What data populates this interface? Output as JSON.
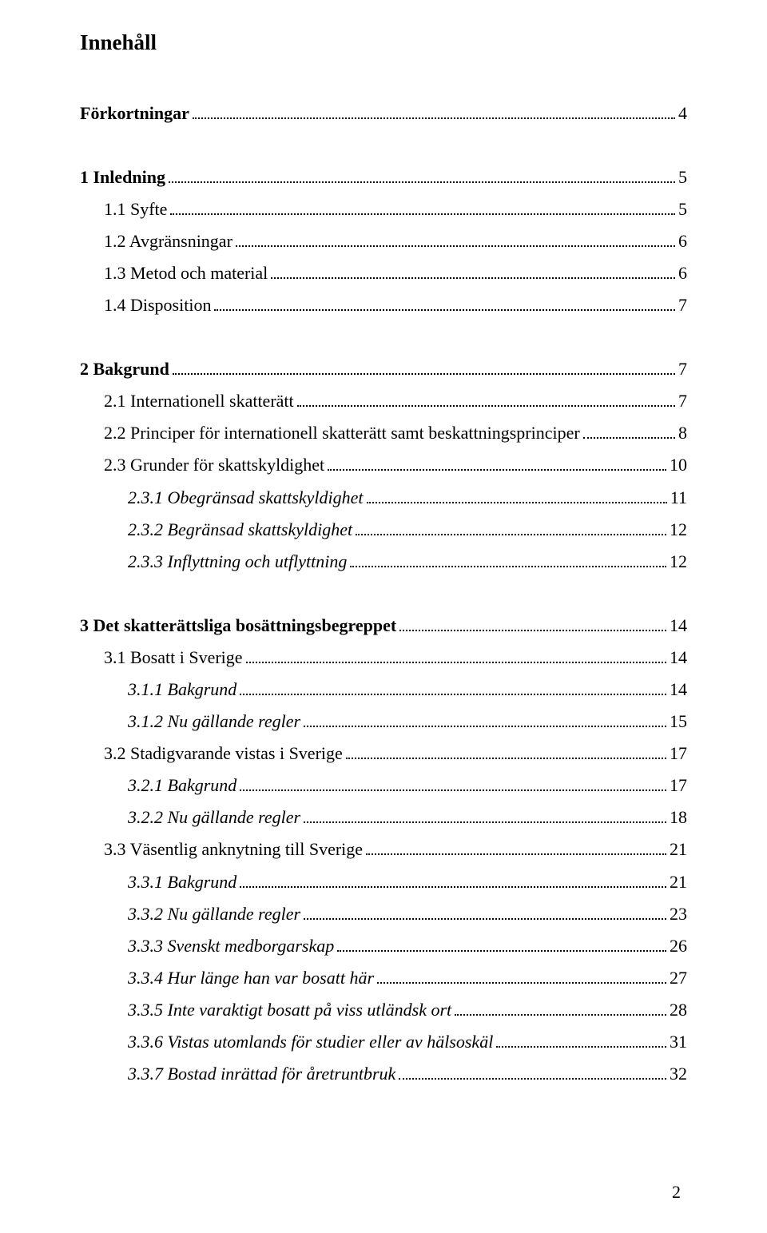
{
  "title": "Innehåll",
  "footer_page": "2",
  "text_color": "#000000",
  "background_color": "#ffffff",
  "font_family": "Times New Roman",
  "title_fontsize": 27,
  "body_fontsize": 22,
  "entries": [
    {
      "label": "Förkortningar",
      "page": "4",
      "indent": 0,
      "bold": true,
      "italic": false,
      "gap_before": false
    },
    {
      "label": "1 Inledning",
      "page": "5",
      "indent": 0,
      "bold": true,
      "italic": false,
      "gap_before": true
    },
    {
      "label": "1.1 Syfte",
      "page": "5",
      "indent": 1,
      "bold": false,
      "italic": false,
      "gap_before": false
    },
    {
      "label": "1.2 Avgränsningar",
      "page": "6",
      "indent": 1,
      "bold": false,
      "italic": false,
      "gap_before": false
    },
    {
      "label": "1.3 Metod och material",
      "page": "6",
      "indent": 1,
      "bold": false,
      "italic": false,
      "gap_before": false
    },
    {
      "label": "1.4 Disposition",
      "page": "7",
      "indent": 1,
      "bold": false,
      "italic": false,
      "gap_before": false
    },
    {
      "label": "2 Bakgrund",
      "page": "7",
      "indent": 0,
      "bold": true,
      "italic": false,
      "gap_before": true
    },
    {
      "label": "2.1 Internationell skatterätt",
      "page": "7",
      "indent": 1,
      "bold": false,
      "italic": false,
      "gap_before": false
    },
    {
      "label": "2.2 Principer för internationell skatterätt samt beskattningsprinciper",
      "page": "8",
      "indent": 1,
      "bold": false,
      "italic": false,
      "gap_before": false
    },
    {
      "label": "2.3 Grunder för skattskyldighet",
      "page": "10",
      "indent": 1,
      "bold": false,
      "italic": false,
      "gap_before": false
    },
    {
      "label": "2.3.1 Obegränsad skattskyldighet",
      "page": "11",
      "indent": 2,
      "bold": false,
      "italic": true,
      "gap_before": false
    },
    {
      "label": "2.3.2 Begränsad skattskyldighet",
      "page": "12",
      "indent": 2,
      "bold": false,
      "italic": true,
      "gap_before": false
    },
    {
      "label": "2.3.3 Inflyttning och utflyttning",
      "page": "12",
      "indent": 2,
      "bold": false,
      "italic": true,
      "gap_before": false
    },
    {
      "label": "3 Det skatterättsliga bosättningsbegreppet",
      "page": "14",
      "indent": 0,
      "bold": true,
      "italic": false,
      "gap_before": true
    },
    {
      "label": "3.1 Bosatt i Sverige",
      "page": "14",
      "indent": 1,
      "bold": false,
      "italic": false,
      "gap_before": false
    },
    {
      "label": "3.1.1 Bakgrund",
      "page": "14",
      "indent": 2,
      "bold": false,
      "italic": true,
      "gap_before": false
    },
    {
      "label": "3.1.2 Nu gällande regler",
      "page": "15",
      "indent": 2,
      "bold": false,
      "italic": true,
      "gap_before": false
    },
    {
      "label": "3.2 Stadigvarande vistas i Sverige",
      "page": "17",
      "indent": 1,
      "bold": false,
      "italic": false,
      "gap_before": false
    },
    {
      "label": "3.2.1 Bakgrund",
      "page": "17",
      "indent": 2,
      "bold": false,
      "italic": true,
      "gap_before": false
    },
    {
      "label": "3.2.2 Nu gällande regler",
      "page": "18",
      "indent": 2,
      "bold": false,
      "italic": true,
      "gap_before": false
    },
    {
      "label": "3.3 Väsentlig anknytning till Sverige",
      "page": "21",
      "indent": 1,
      "bold": false,
      "italic": false,
      "gap_before": false
    },
    {
      "label": "3.3.1 Bakgrund",
      "page": "21",
      "indent": 2,
      "bold": false,
      "italic": true,
      "gap_before": false
    },
    {
      "label": "3.3.2 Nu gällande regler",
      "page": "23",
      "indent": 2,
      "bold": false,
      "italic": true,
      "gap_before": false
    },
    {
      "label": "3.3.3 Svenskt medborgarskap",
      "page": "26",
      "indent": 2,
      "bold": false,
      "italic": true,
      "gap_before": false
    },
    {
      "label": "3.3.4 Hur länge han var bosatt här",
      "page": "27",
      "indent": 2,
      "bold": false,
      "italic": true,
      "gap_before": false
    },
    {
      "label": "3.3.5 Inte varaktigt bosatt på viss utländsk ort",
      "page": "28",
      "indent": 2,
      "bold": false,
      "italic": true,
      "gap_before": false
    },
    {
      "label": "3.3.6 Vistas utomlands för studier eller av hälsoskäl",
      "page": "31",
      "indent": 2,
      "bold": false,
      "italic": true,
      "gap_before": false
    },
    {
      "label": "3.3.7 Bostad inrättad för åretruntbruk",
      "page": "32",
      "indent": 2,
      "bold": false,
      "italic": true,
      "gap_before": false
    }
  ]
}
